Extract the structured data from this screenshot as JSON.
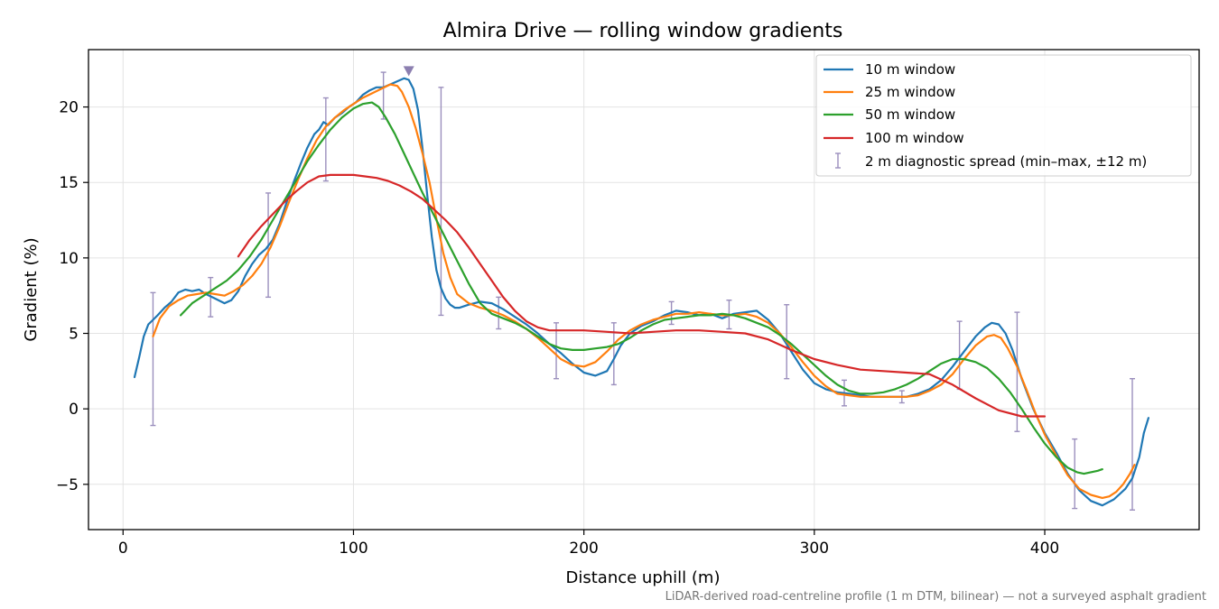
{
  "chart_data": {
    "type": "line",
    "title": "Almira Drive — rolling window gradients",
    "xlabel": "Distance uphill (m)",
    "ylabel": "Gradient (%)",
    "xlim": [
      -15,
      467
    ],
    "ylim": [
      -8,
      23.8
    ],
    "xticks": [
      0,
      100,
      200,
      300,
      400
    ],
    "xtick_labels": [
      "0",
      "100",
      "200",
      "300",
      "400"
    ],
    "yticks": [
      -5,
      0,
      5,
      10,
      15,
      20
    ],
    "ytick_labels": [
      "−5",
      "0",
      "5",
      "10",
      "15",
      "20"
    ],
    "grid": true,
    "legend_position": "top-right",
    "footnote": "LiDAR-derived road-centreline profile (1 m DTM, bilinear) — not a surveyed asphalt gradient",
    "series": [
      {
        "name": "10 m window",
        "color": "#1f77b4",
        "x": [
          5,
          7,
          9,
          11,
          13,
          15,
          18,
          21,
          24,
          27,
          30,
          33,
          36,
          40,
          44,
          47,
          50,
          53,
          56,
          59,
          62,
          65,
          68,
          71,
          74,
          77,
          80,
          83,
          85,
          87,
          89,
          92,
          95,
          98,
          101,
          104,
          107,
          110,
          113,
          116,
          119,
          122,
          124,
          126,
          128,
          130,
          132,
          134,
          136,
          138,
          140,
          142,
          144,
          146,
          150,
          155,
          160,
          165,
          170,
          175,
          180,
          185,
          190,
          195,
          200,
          205,
          210,
          213,
          216,
          220,
          225,
          230,
          235,
          240,
          245,
          250,
          255,
          260,
          265,
          270,
          275,
          280,
          285,
          290,
          295,
          300,
          305,
          310,
          315,
          320,
          325,
          330,
          335,
          340,
          345,
          350,
          355,
          360,
          365,
          370,
          374,
          377,
          380,
          383,
          386,
          390,
          395,
          400,
          405,
          410,
          415,
          420,
          425,
          430,
          435,
          438,
          441,
          443,
          445
        ],
        "y": [
          2.1,
          3.4,
          4.8,
          5.6,
          5.9,
          6.2,
          6.7,
          7.1,
          7.7,
          7.9,
          7.8,
          7.9,
          7.6,
          7.3,
          7.0,
          7.2,
          7.8,
          8.8,
          9.6,
          10.2,
          10.6,
          11.2,
          12.3,
          13.7,
          15.0,
          16.2,
          17.3,
          18.2,
          18.5,
          19.0,
          18.8,
          19.3,
          19.6,
          20.0,
          20.3,
          20.8,
          21.1,
          21.3,
          21.3,
          21.5,
          21.7,
          21.9,
          21.8,
          21.2,
          19.8,
          17.2,
          14.2,
          11.4,
          9.2,
          8.0,
          7.3,
          6.9,
          6.7,
          6.7,
          6.9,
          7.1,
          7.0,
          6.6,
          6.1,
          5.6,
          5.0,
          4.3,
          3.7,
          3.0,
          2.4,
          2.2,
          2.5,
          3.3,
          4.2,
          5.0,
          5.5,
          5.8,
          6.2,
          6.5,
          6.4,
          6.2,
          6.3,
          6.0,
          6.3,
          6.4,
          6.5,
          5.9,
          5.0,
          3.8,
          2.6,
          1.7,
          1.3,
          1.1,
          1.0,
          0.9,
          0.8,
          0.8,
          0.8,
          0.8,
          1.0,
          1.3,
          1.9,
          2.8,
          3.8,
          4.8,
          5.4,
          5.7,
          5.6,
          5.0,
          3.9,
          2.0,
          0.0,
          -1.6,
          -2.9,
          -4.3,
          -5.4,
          -6.1,
          -6.4,
          -6.0,
          -5.3,
          -4.6,
          -3.2,
          -1.6,
          -0.6
        ]
      },
      {
        "name": "25 m window",
        "color": "#ff7f0e",
        "x": [
          13,
          16,
          20,
          24,
          28,
          32,
          36,
          40,
          44,
          48,
          52,
          56,
          60,
          64,
          68,
          72,
          76,
          80,
          84,
          88,
          92,
          96,
          100,
          104,
          108,
          112,
          116,
          119,
          121,
          124,
          127,
          130,
          133,
          136,
          139,
          142,
          145,
          150,
          155,
          160,
          165,
          170,
          175,
          180,
          185,
          190,
          195,
          200,
          205,
          210,
          215,
          220,
          225,
          230,
          235,
          240,
          245,
          250,
          255,
          260,
          265,
          270,
          275,
          280,
          285,
          290,
          295,
          300,
          305,
          310,
          315,
          320,
          325,
          330,
          335,
          340,
          345,
          350,
          355,
          360,
          365,
          370,
          375,
          378,
          381,
          384,
          388,
          392,
          396,
          400,
          405,
          410,
          415,
          420,
          425,
          428,
          431,
          434,
          437,
          439
        ],
        "y": [
          4.8,
          6.0,
          6.8,
          7.2,
          7.5,
          7.6,
          7.7,
          7.6,
          7.5,
          7.8,
          8.2,
          8.8,
          9.6,
          10.7,
          12.1,
          13.7,
          15.2,
          16.6,
          17.8,
          18.7,
          19.3,
          19.8,
          20.2,
          20.6,
          20.9,
          21.2,
          21.5,
          21.4,
          21.0,
          20.0,
          18.6,
          16.9,
          15.0,
          12.6,
          10.3,
          8.7,
          7.6,
          7.0,
          6.7,
          6.5,
          6.2,
          5.8,
          5.3,
          4.7,
          4.0,
          3.3,
          2.9,
          2.8,
          3.1,
          3.8,
          4.6,
          5.2,
          5.6,
          5.9,
          6.1,
          6.3,
          6.3,
          6.4,
          6.3,
          6.2,
          6.2,
          6.3,
          6.1,
          5.7,
          5.0,
          4.1,
          3.1,
          2.2,
          1.5,
          1.0,
          0.9,
          0.8,
          0.8,
          0.8,
          0.8,
          0.8,
          0.9,
          1.2,
          1.6,
          2.3,
          3.3,
          4.2,
          4.8,
          4.9,
          4.7,
          4.0,
          2.8,
          1.3,
          -0.3,
          -1.7,
          -3.1,
          -4.4,
          -5.3,
          -5.7,
          -5.9,
          -5.8,
          -5.5,
          -5.0,
          -4.3,
          -3.7
        ]
      },
      {
        "name": "50 m window",
        "color": "#2ca02c",
        "x": [
          25,
          30,
          35,
          40,
          45,
          50,
          55,
          60,
          65,
          70,
          75,
          80,
          85,
          90,
          95,
          100,
          104,
          108,
          111,
          114,
          118,
          122,
          126,
          130,
          135,
          140,
          145,
          150,
          155,
          160,
          165,
          170,
          175,
          180,
          185,
          190,
          195,
          200,
          205,
          210,
          215,
          220,
          225,
          230,
          235,
          240,
          245,
          250,
          255,
          260,
          265,
          270,
          275,
          280,
          285,
          290,
          295,
          300,
          305,
          310,
          315,
          320,
          325,
          330,
          335,
          340,
          345,
          350,
          355,
          360,
          365,
          370,
          375,
          380,
          385,
          390,
          395,
          400,
          405,
          410,
          414,
          417,
          420,
          423,
          425
        ],
        "y": [
          6.2,
          7.0,
          7.5,
          8.0,
          8.5,
          9.2,
          10.1,
          11.2,
          12.5,
          13.8,
          15.1,
          16.4,
          17.5,
          18.5,
          19.3,
          19.9,
          20.2,
          20.3,
          20.0,
          19.3,
          18.2,
          16.9,
          15.6,
          14.3,
          12.8,
          11.3,
          9.8,
          8.3,
          7.0,
          6.3,
          6.0,
          5.7,
          5.3,
          4.8,
          4.3,
          4.0,
          3.9,
          3.9,
          4.0,
          4.1,
          4.3,
          4.7,
          5.2,
          5.6,
          5.9,
          6.0,
          6.1,
          6.2,
          6.2,
          6.3,
          6.2,
          6.0,
          5.7,
          5.4,
          4.9,
          4.3,
          3.6,
          2.9,
          2.2,
          1.6,
          1.2,
          1.0,
          1.0,
          1.1,
          1.3,
          1.6,
          2.0,
          2.5,
          3.0,
          3.3,
          3.3,
          3.1,
          2.7,
          2.0,
          1.1,
          0.0,
          -1.2,
          -2.3,
          -3.2,
          -3.9,
          -4.2,
          -4.3,
          -4.2,
          -4.1,
          -4.0
        ]
      },
      {
        "name": "100 m window",
        "color": "#d62728",
        "x": [
          50,
          55,
          60,
          65,
          70,
          75,
          80,
          85,
          90,
          95,
          100,
          105,
          110,
          115,
          120,
          125,
          130,
          135,
          140,
          145,
          150,
          155,
          160,
          165,
          170,
          175,
          180,
          185,
          190,
          195,
          200,
          210,
          220,
          230,
          240,
          250,
          260,
          270,
          280,
          290,
          300,
          310,
          320,
          330,
          340,
          350,
          360,
          370,
          380,
          390,
          395,
          400
        ],
        "y": [
          10.1,
          11.2,
          12.1,
          12.9,
          13.7,
          14.4,
          15.0,
          15.4,
          15.5,
          15.5,
          15.5,
          15.4,
          15.3,
          15.1,
          14.8,
          14.4,
          13.9,
          13.2,
          12.5,
          11.7,
          10.7,
          9.6,
          8.5,
          7.4,
          6.5,
          5.8,
          5.4,
          5.2,
          5.2,
          5.2,
          5.2,
          5.1,
          5.0,
          5.1,
          5.2,
          5.2,
          5.1,
          5.0,
          4.6,
          3.9,
          3.3,
          2.9,
          2.6,
          2.5,
          2.4,
          2.3,
          1.6,
          0.7,
          -0.1,
          -0.5,
          -0.5,
          -0.5
        ]
      }
    ],
    "error_bars": {
      "name": "2 m diagnostic spread (min–max, ±12 m)",
      "color": "#9b8fbd",
      "x": [
        13,
        38,
        63,
        88,
        113,
        138,
        163,
        188,
        213,
        238,
        263,
        288,
        313,
        338,
        363,
        388,
        413,
        438
      ],
      "low": [
        -1.1,
        6.1,
        7.4,
        15.1,
        19.2,
        6.2,
        5.3,
        2.0,
        1.6,
        5.6,
        5.3,
        2.0,
        0.2,
        0.4,
        1.3,
        -1.5,
        -6.6,
        -6.7
      ],
      "high": [
        7.7,
        8.7,
        14.3,
        20.6,
        22.3,
        21.3,
        7.4,
        5.7,
        5.7,
        7.1,
        7.2,
        6.9,
        1.9,
        1.2,
        5.8,
        6.4,
        -2.0,
        2.0
      ]
    },
    "max_marker": {
      "x": 124,
      "y": 22.4,
      "color": "#8c7fb0"
    }
  }
}
